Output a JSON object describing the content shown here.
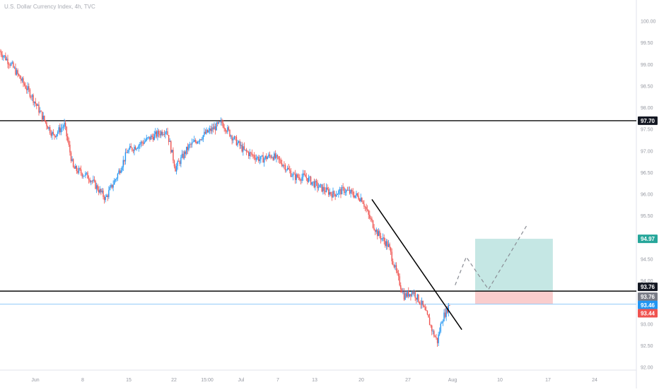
{
  "title": "U.S. Dollar Currency Index, 4h, TVC",
  "colors": {
    "up": "#2196f3",
    "down": "#ef5350",
    "hline": "#1e1e1e",
    "price_line": "#90caf9",
    "target_zone": "#b2dfdb",
    "stop_zone": "#f8c8c8",
    "axis_text": "#9598a1",
    "grid": "#e0e3eb"
  },
  "chart_data": {
    "type": "candlestick",
    "symbol": "DXY",
    "timeframe": "4h",
    "y_ticks": [
      100.0,
      99.5,
      99.0,
      98.5,
      98.0,
      97.5,
      97.0,
      96.5,
      96.0,
      95.5,
      95.0,
      94.5,
      94.0,
      93.5,
      93.0,
      92.5,
      92.0
    ],
    "ylim": [
      91.85,
      100.5
    ],
    "x_ticks": [
      "Jun",
      "8",
      "15",
      "22",
      "15:00",
      "Jul",
      "7",
      "13",
      "20",
      "27",
      "Aug",
      "10",
      "17",
      "24"
    ],
    "close_path": [
      {
        "x": 0,
        "y": 99.3
      },
      {
        "x": 10,
        "y": 99.0
      },
      {
        "x": 20,
        "y": 98.6
      },
      {
        "x": 28,
        "y": 98.3
      },
      {
        "x": 38,
        "y": 97.8
      },
      {
        "x": 48,
        "y": 97.35
      },
      {
        "x": 58,
        "y": 97.6
      },
      {
        "x": 66,
        "y": 96.6
      },
      {
        "x": 80,
        "y": 96.4
      },
      {
        "x": 95,
        "y": 95.9
      },
      {
        "x": 105,
        "y": 96.4
      },
      {
        "x": 115,
        "y": 97.0
      },
      {
        "x": 135,
        "y": 97.3
      },
      {
        "x": 150,
        "y": 97.5
      },
      {
        "x": 158,
        "y": 96.6
      },
      {
        "x": 170,
        "y": 97.1
      },
      {
        "x": 185,
        "y": 97.4
      },
      {
        "x": 200,
        "y": 97.65
      },
      {
        "x": 210,
        "y": 97.3
      },
      {
        "x": 220,
        "y": 97.0
      },
      {
        "x": 235,
        "y": 96.8
      },
      {
        "x": 245,
        "y": 96.9
      },
      {
        "x": 255,
        "y": 96.7
      },
      {
        "x": 265,
        "y": 96.4
      },
      {
        "x": 275,
        "y": 96.4
      },
      {
        "x": 285,
        "y": 96.2
      },
      {
        "x": 300,
        "y": 96.0
      },
      {
        "x": 310,
        "y": 96.1
      },
      {
        "x": 318,
        "y": 96.0
      },
      {
        "x": 326,
        "y": 95.9
      },
      {
        "x": 332,
        "y": 95.5
      },
      {
        "x": 340,
        "y": 95.1
      },
      {
        "x": 350,
        "y": 94.8
      },
      {
        "x": 358,
        "y": 94.1
      },
      {
        "x": 364,
        "y": 93.65
      },
      {
        "x": 372,
        "y": 93.75
      },
      {
        "x": 380,
        "y": 93.45
      },
      {
        "x": 386,
        "y": 93.1
      },
      {
        "x": 390,
        "y": 92.8
      },
      {
        "x": 394,
        "y": 92.6
      },
      {
        "x": 398,
        "y": 93.1
      },
      {
        "x": 402,
        "y": 93.3
      },
      {
        "x": 405,
        "y": 93.46
      }
    ],
    "levels": [
      97.7,
      93.76
    ],
    "current_price": 93.46,
    "price_tags": [
      {
        "label": "97.70",
        "value": 97.7,
        "bg": "#131722",
        "fg": "#ffffff"
      },
      {
        "label": "94.97",
        "value": 94.97,
        "bg": "#26a69a",
        "fg": "#ffffff"
      },
      {
        "label": "93.76",
        "value": 93.86,
        "bg": "#131722",
        "fg": "#ffffff"
      },
      {
        "label": "93.76",
        "value": 93.63,
        "bg": "#787b86",
        "fg": "#ffffff"
      },
      {
        "label": "93.46",
        "value": 93.44,
        "bg": "#2196f3",
        "fg": "#ffffff"
      },
      {
        "label": "93.44",
        "value": 93.25,
        "bg": "#ef5350",
        "fg": "#ffffff"
      }
    ],
    "trendline": [
      {
        "x": 335,
        "y": 95.88
      },
      {
        "x": 416,
        "y": 92.87
      }
    ],
    "projection": [
      {
        "x": 410,
        "y": 93.9
      },
      {
        "x": 420,
        "y": 94.55
      },
      {
        "x": 440,
        "y": 93.8
      },
      {
        "x": 475,
        "y": 95.3
      }
    ],
    "long_position": {
      "x_start": 428,
      "x_end": 498,
      "entry": 93.76,
      "target": 94.97,
      "stop": 93.46
    }
  }
}
